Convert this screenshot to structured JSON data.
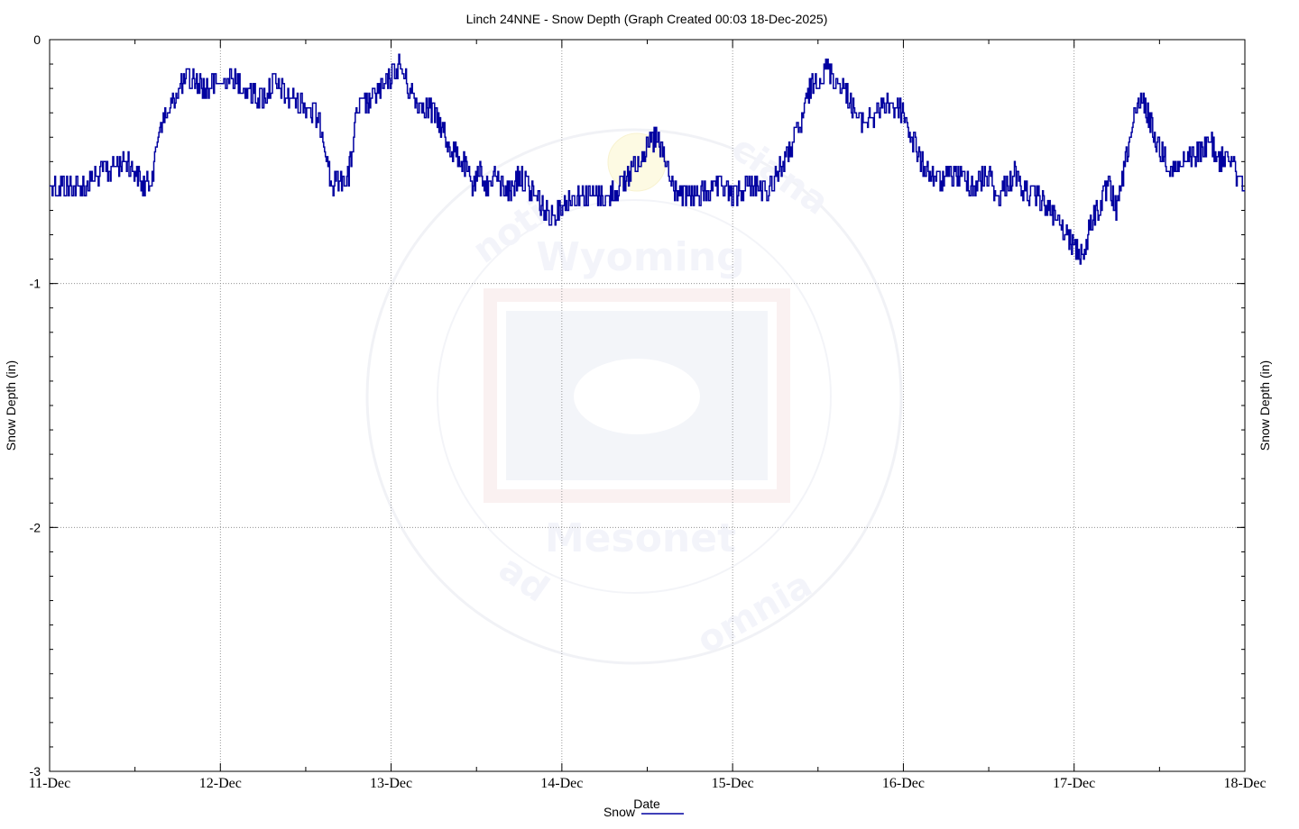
{
  "chart_data": {
    "type": "line",
    "title": "Linch 24NNE - Snow Depth (Graph Created 00:03 18-Dec-2025)",
    "xlabel": "Date",
    "ylabel_left": "Snow Depth (in)",
    "ylabel_right": "Snow Depth (in)",
    "ylim": [
      -3,
      0
    ],
    "yticks": [
      0,
      -1,
      -2,
      -3
    ],
    "xlim": [
      "2025-12-11",
      "2025-12-18"
    ],
    "xticks": [
      "11-Dec",
      "12-Dec",
      "13-Dec",
      "14-Dec",
      "15-Dec",
      "16-Dec",
      "17-Dec",
      "18-Dec"
    ],
    "grid": true,
    "legend_position": "bottom-center",
    "series": [
      {
        "name": "Snow",
        "color": "#0000a0",
        "x_days_from_11_dec": [
          0.0,
          0.2,
          0.3,
          0.45,
          0.55,
          0.6,
          0.65,
          0.7,
          0.75,
          0.82,
          0.9,
          1.0,
          1.05,
          1.15,
          1.25,
          1.3,
          1.35,
          1.4,
          1.45,
          1.55,
          1.6,
          1.65,
          1.75,
          1.8,
          1.87,
          1.95,
          2.0,
          2.05,
          2.1,
          2.15,
          2.25,
          2.35,
          2.42,
          2.48,
          2.52,
          2.56,
          2.6,
          2.65,
          2.7,
          2.75,
          2.8,
          2.85,
          2.9,
          2.95,
          3.0,
          3.05,
          3.15,
          3.25,
          3.35,
          3.45,
          3.55,
          3.6,
          3.65,
          3.75,
          3.85,
          3.95,
          4.0,
          4.05,
          4.1,
          4.2,
          4.3,
          4.4,
          4.45,
          4.55,
          4.65,
          4.75,
          4.85,
          4.9,
          5.0,
          5.1,
          5.2,
          5.3,
          5.4,
          5.5,
          5.55,
          5.6,
          5.65,
          5.7,
          5.8,
          5.9,
          6.0,
          6.05,
          6.1,
          6.2,
          6.25,
          6.3,
          6.35,
          6.4,
          6.45,
          6.5,
          6.55,
          6.6,
          6.65,
          6.7,
          6.75,
          6.8,
          6.85,
          6.9,
          6.95,
          7.0
        ],
        "values": [
          -0.6,
          -0.6,
          -0.55,
          -0.5,
          -0.6,
          -0.55,
          -0.35,
          -0.3,
          -0.2,
          -0.15,
          -0.2,
          -0.18,
          -0.15,
          -0.2,
          -0.25,
          -0.18,
          -0.2,
          -0.25,
          -0.25,
          -0.3,
          -0.38,
          -0.6,
          -0.55,
          -0.3,
          -0.25,
          -0.2,
          -0.15,
          -0.1,
          -0.2,
          -0.25,
          -0.3,
          -0.45,
          -0.5,
          -0.6,
          -0.55,
          -0.6,
          -0.55,
          -0.6,
          -0.62,
          -0.55,
          -0.6,
          -0.65,
          -0.7,
          -0.72,
          -0.68,
          -0.65,
          -0.65,
          -0.65,
          -0.6,
          -0.48,
          -0.4,
          -0.5,
          -0.62,
          -0.65,
          -0.62,
          -0.6,
          -0.65,
          -0.62,
          -0.6,
          -0.62,
          -0.5,
          -0.35,
          -0.2,
          -0.12,
          -0.2,
          -0.35,
          -0.3,
          -0.25,
          -0.3,
          -0.5,
          -0.58,
          -0.55,
          -0.6,
          -0.55,
          -0.65,
          -0.6,
          -0.55,
          -0.62,
          -0.65,
          -0.75,
          -0.85,
          -0.88,
          -0.75,
          -0.6,
          -0.7,
          -0.5,
          -0.32,
          -0.25,
          -0.35,
          -0.45,
          -0.5,
          -0.55,
          -0.5,
          -0.48,
          -0.45,
          -0.42,
          -0.5,
          -0.45,
          -0.55,
          -0.58
        ]
      }
    ]
  },
  "watermark": {
    "top_text": "Wyoming",
    "bottom_text": "Mesonet",
    "ring_left": "noti",
    "ring_right": "ciana",
    "ring_bottom_left": "ad",
    "ring_bottom_right": "omnia"
  }
}
